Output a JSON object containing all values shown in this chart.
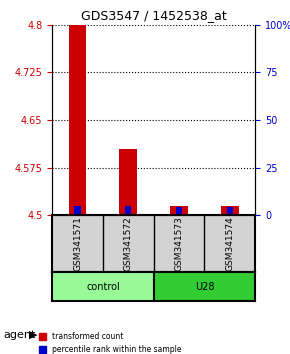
{
  "title": "GDS3547 / 1452538_at",
  "samples": [
    "GSM341571",
    "GSM341572",
    "GSM341573",
    "GSM341574"
  ],
  "groups": [
    "control",
    "control",
    "U28",
    "U28"
  ],
  "group_labels": [
    "control",
    "U28"
  ],
  "group_colors": [
    "#90EE90",
    "#00CC00"
  ],
  "red_values": [
    4.8,
    4.605,
    4.515,
    4.515
  ],
  "blue_values": [
    4.515,
    4.515,
    4.513,
    4.513
  ],
  "red_base": 4.5,
  "ylim": [
    4.5,
    4.8
  ],
  "yticks": [
    4.5,
    4.575,
    4.65,
    4.725,
    4.8
  ],
  "ytick_labels": [
    "4.5",
    "4.575",
    "4.65",
    "4.725",
    "4.8"
  ],
  "y2ticks": [
    0,
    25,
    50,
    75,
    100
  ],
  "y2tick_labels": [
    "0",
    "25",
    "50",
    "75",
    "100%"
  ],
  "red_color": "#CC0000",
  "blue_color": "#0000CC",
  "bar_width": 0.35,
  "legend_red": "transformed count",
  "legend_blue": "percentile rank within the sample",
  "agent_label": "agent",
  "ylabel_color_left": "#CC0000",
  "ylabel_color_right": "#0000CC"
}
